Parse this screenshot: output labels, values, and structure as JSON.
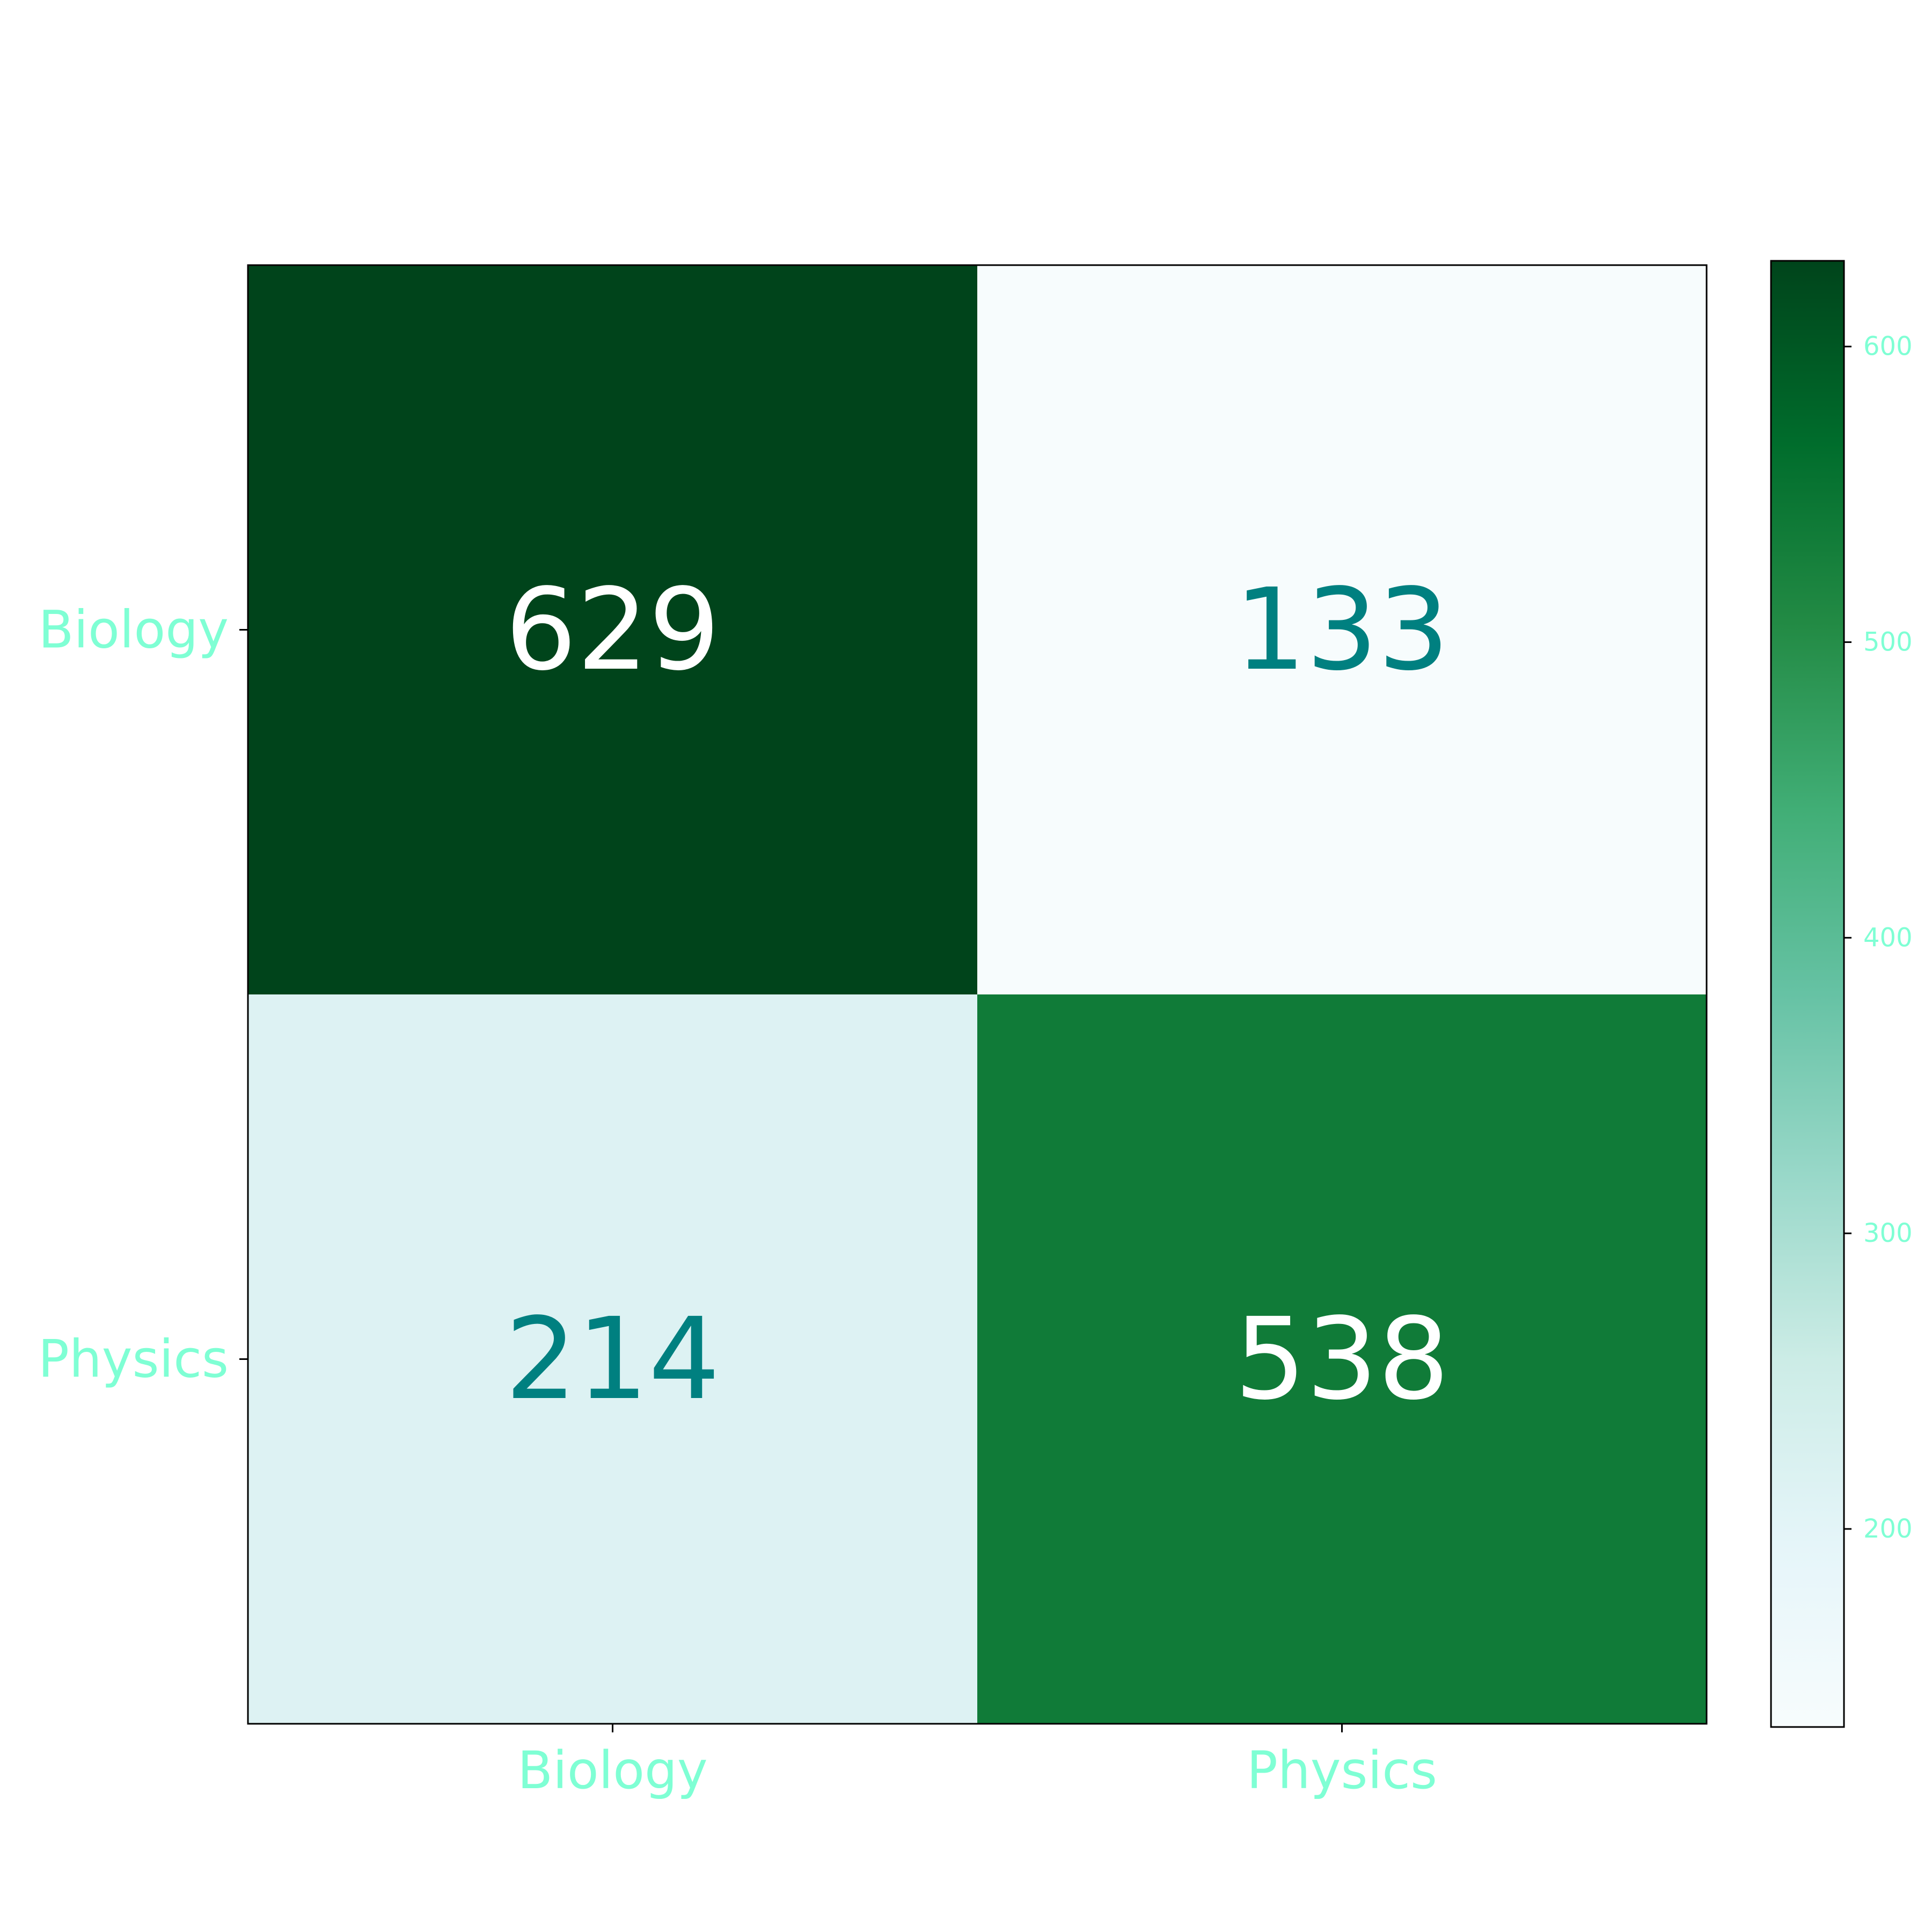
{
  "chart_data": {
    "type": "heatmap",
    "x_categories": [
      "Biology",
      "Physics"
    ],
    "y_categories": [
      "Biology",
      "Physics"
    ],
    "values": [
      [
        629,
        133
      ],
      [
        214,
        538
      ]
    ],
    "colorbar": {
      "ticks": [
        200,
        300,
        400,
        500,
        600
      ],
      "range": [
        133,
        629
      ],
      "colormap": "BuGn"
    },
    "colors": {
      "tick_label": "#7fffd4",
      "annotation_dark_text": "#008080",
      "annotation_light_text": "#ffffff",
      "axes_edge": "#000000"
    }
  }
}
